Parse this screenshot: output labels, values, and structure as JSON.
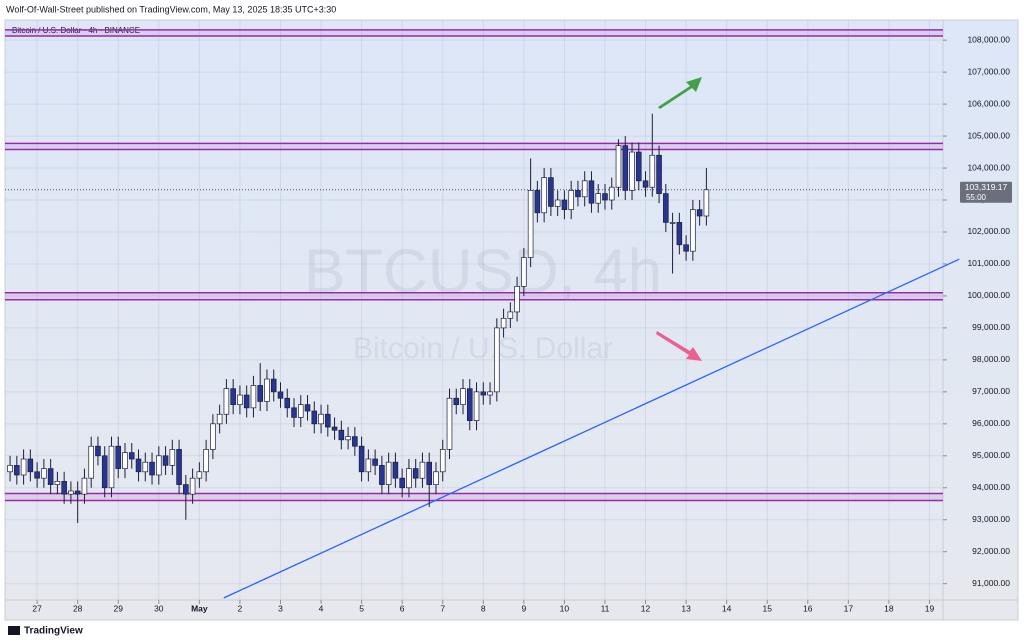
{
  "header": {
    "text": "Wolf-Of-Wall-Street published on TradingView.com, May 13, 2025 18:35 UTC+3:30"
  },
  "footer": {
    "brand": "TradingView"
  },
  "chart_data": {
    "type": "candlestick",
    "title": "Bitcoin / U.S. Dollar · 4h · BINANCE",
    "watermark": {
      "symbol": "BTCUSD, 4h",
      "description": "Bitcoin / U.S. Dollar"
    },
    "x": [
      -16,
      -12,
      -8,
      -4,
      0,
      4,
      8,
      12,
      16,
      20,
      24,
      28,
      32,
      36,
      40,
      44,
      48,
      52,
      56,
      60,
      64,
      68,
      72,
      76,
      80,
      84,
      88,
      92,
      96,
      100,
      104,
      108,
      112,
      116,
      120,
      124,
      128,
      132,
      136,
      140,
      144,
      148,
      152,
      156,
      160,
      164,
      168,
      172,
      176,
      180,
      184,
      188,
      192,
      196,
      200,
      204,
      208,
      212,
      216,
      220,
      224,
      228,
      232,
      236,
      240,
      244,
      248,
      252,
      256,
      260,
      264,
      268,
      272,
      276,
      280,
      284,
      288,
      292,
      296,
      300,
      304,
      308,
      312,
      316,
      320,
      324,
      328,
      332,
      336,
      340,
      344,
      348,
      352,
      356,
      360,
      364,
      368,
      372,
      376,
      380,
      384,
      388,
      392,
      396
    ],
    "open": [
      94500,
      94700,
      94400,
      94900,
      94500,
      94300,
      94600,
      94100,
      94200,
      93800,
      93900,
      93800,
      94300,
      95300,
      95000,
      94000,
      95300,
      94600,
      95100,
      94900,
      94500,
      94800,
      94400,
      95000,
      94700,
      95200,
      94100,
      93800,
      94300,
      94500,
      95200,
      96000,
      96300,
      97100,
      96600,
      96900,
      96500,
      97200,
      96700,
      97400,
      97000,
      96800,
      96500,
      96200,
      96600,
      96400,
      96000,
      96300,
      95900,
      95800,
      95500,
      95600,
      95300,
      94500,
      94900,
      94700,
      94100,
      94800,
      94300,
      94000,
      94600,
      94300,
      94800,
      94100,
      94500,
      95200,
      96800,
      96600,
      97100,
      96100,
      97000,
      96900,
      97000,
      99000,
      99300,
      99500,
      100300,
      101200,
      103300,
      102600,
      103700,
      102800,
      103000,
      102700,
      103300,
      103100,
      103600,
      102900,
      103200,
      103000,
      103400,
      104700,
      103300,
      104500,
      103600,
      103400,
      104400,
      103200,
      102300,
      102300,
      101600,
      101400,
      102700,
      102500
    ],
    "high": [
      95000,
      95000,
      95200,
      95200,
      94800,
      94900,
      94900,
      94500,
      94500,
      94200,
      94200,
      94600,
      95600,
      95600,
      95300,
      95600,
      95600,
      95400,
      95400,
      95200,
      95100,
      95100,
      95300,
      95300,
      95500,
      95500,
      94400,
      94600,
      94800,
      95500,
      96300,
      96600,
      97400,
      97400,
      97200,
      97200,
      97500,
      97900,
      97700,
      97700,
      97300,
      97100,
      96800,
      96900,
      96900,
      96700,
      96600,
      96600,
      96200,
      96100,
      95900,
      95900,
      95600,
      95200,
      95200,
      95000,
      95100,
      95100,
      94600,
      94900,
      94900,
      95100,
      95100,
      94800,
      95500,
      97100,
      97100,
      97400,
      97400,
      97300,
      97300,
      97300,
      99300,
      99600,
      99800,
      100600,
      101500,
      104300,
      103600,
      104000,
      104000,
      103300,
      103300,
      103600,
      103600,
      103900,
      103900,
      103500,
      103500,
      103700,
      104900,
      105000,
      104800,
      104800,
      103900,
      105700,
      104700,
      103500,
      102600,
      102600,
      101900,
      103000,
      103000,
      104000
    ],
    "low": [
      94200,
      94100,
      94100,
      94200,
      94000,
      94000,
      93800,
      93800,
      93500,
      93500,
      92900,
      93500,
      94000,
      94700,
      93700,
      93700,
      94300,
      94300,
      94600,
      94200,
      94200,
      94100,
      94100,
      94400,
      94400,
      93800,
      93000,
      93500,
      94000,
      94200,
      94900,
      95700,
      96000,
      96300,
      96300,
      96200,
      96200,
      96400,
      96400,
      96700,
      96500,
      96200,
      95900,
      95900,
      96100,
      95700,
      95700,
      95600,
      95500,
      95200,
      95200,
      95000,
      94200,
      94200,
      94400,
      93800,
      93800,
      94000,
      93700,
      93700,
      94000,
      94000,
      93400,
      93800,
      94200,
      94900,
      96300,
      96300,
      95800,
      95800,
      96600,
      96600,
      96700,
      98700,
      99000,
      99200,
      100000,
      100900,
      102300,
      102300,
      102500,
      102500,
      102400,
      102400,
      102800,
      102800,
      102600,
      102600,
      102700,
      102700,
      103100,
      103000,
      103000,
      103300,
      103100,
      103100,
      102900,
      102000,
      100700,
      101300,
      101100,
      101100,
      102200,
      102200
    ],
    "close": [
      94700,
      94400,
      94900,
      94500,
      94300,
      94600,
      94100,
      94200,
      93800,
      93900,
      93800,
      94300,
      95300,
      95000,
      94000,
      95300,
      94600,
      95100,
      94900,
      94500,
      94800,
      94400,
      95000,
      94700,
      95200,
      94100,
      93800,
      94300,
      94500,
      95200,
      96000,
      96300,
      97100,
      96600,
      96900,
      96500,
      97200,
      96700,
      97400,
      97000,
      96800,
      96500,
      96200,
      96600,
      96400,
      96000,
      96300,
      95900,
      95800,
      95500,
      95600,
      95300,
      94500,
      94900,
      94700,
      94100,
      94800,
      94300,
      94000,
      94600,
      94300,
      94800,
      94100,
      94500,
      95200,
      96800,
      96600,
      97100,
      96100,
      97000,
      96900,
      97000,
      99000,
      99300,
      99500,
      100300,
      101200,
      103300,
      102600,
      103700,
      102800,
      103000,
      102700,
      103300,
      103100,
      103600,
      102900,
      103200,
      103000,
      103400,
      104700,
      103300,
      104500,
      103600,
      103400,
      104400,
      103200,
      102300,
      102300,
      101600,
      101400,
      102700,
      102500,
      103319.17
    ],
    "up_color": "#ffffff",
    "down_color": "#283593",
    "wick_color": "#1c1f3a",
    "xlim": [
      -19,
      536
    ],
    "xticks": [
      {
        "value": 0,
        "label": "27"
      },
      {
        "value": 24,
        "label": "28"
      },
      {
        "value": 48,
        "label": "29"
      },
      {
        "value": 72,
        "label": "30"
      },
      {
        "value": 96,
        "label": "May"
      },
      {
        "value": 120,
        "label": "2"
      },
      {
        "value": 144,
        "label": "3"
      },
      {
        "value": 168,
        "label": "4"
      },
      {
        "value": 192,
        "label": "5"
      },
      {
        "value": 216,
        "label": "6"
      },
      {
        "value": 240,
        "label": "7"
      },
      {
        "value": 264,
        "label": "8"
      },
      {
        "value": 288,
        "label": "9"
      },
      {
        "value": 312,
        "label": "10"
      },
      {
        "value": 336,
        "label": "11"
      },
      {
        "value": 360,
        "label": "12"
      },
      {
        "value": 384,
        "label": "13"
      },
      {
        "value": 408,
        "label": "14"
      },
      {
        "value": 432,
        "label": "15"
      },
      {
        "value": 456,
        "label": "16"
      },
      {
        "value": 480,
        "label": "17"
      },
      {
        "value": 504,
        "label": "18"
      },
      {
        "value": 528,
        "label": "19"
      }
    ],
    "ylim": [
      90490,
      108630
    ],
    "yticks": [
      {
        "value": 91000,
        "label": "91,000.00"
      },
      {
        "value": 92000,
        "label": "92,000.00"
      },
      {
        "value": 93000,
        "label": "93,000.00"
      },
      {
        "value": 94000,
        "label": "94,000.00"
      },
      {
        "value": 95000,
        "label": "95,000.00"
      },
      {
        "value": 96000,
        "label": "96,000.00"
      },
      {
        "value": 97000,
        "label": "97,000.00"
      },
      {
        "value": 98000,
        "label": "98,000.00"
      },
      {
        "value": 99000,
        "label": "99,000.00"
      },
      {
        "value": 100000,
        "label": "100,000.00"
      },
      {
        "value": 101000,
        "label": "101,000.00"
      },
      {
        "value": 102000,
        "label": "102,000.00"
      },
      {
        "value": 103000,
        "label": "103,000.00"
      },
      {
        "value": 104000,
        "label": "104,000.00"
      },
      {
        "value": 105000,
        "label": "105,000.00"
      },
      {
        "value": 106000,
        "label": "106,000.00"
      },
      {
        "value": 107000,
        "label": "107,000.00"
      },
      {
        "value": 108000,
        "label": "108,000.00"
      }
    ],
    "grid": true,
    "current_price": {
      "value": 103319.17,
      "label": "103,319.17",
      "countdown": "55:00"
    },
    "zones": [
      {
        "top": 108320,
        "bottom": 108130
      },
      {
        "top": 104770,
        "bottom": 104580
      },
      {
        "top": 100100,
        "bottom": 99880
      },
      {
        "top": 93820,
        "bottom": 93600
      }
    ],
    "zone_color": "#9c27b0",
    "trendline": {
      "x": [
        110.5,
        545.6
      ],
      "y": [
        90556,
        101149
      ],
      "color": "#2962ff"
    }
  }
}
